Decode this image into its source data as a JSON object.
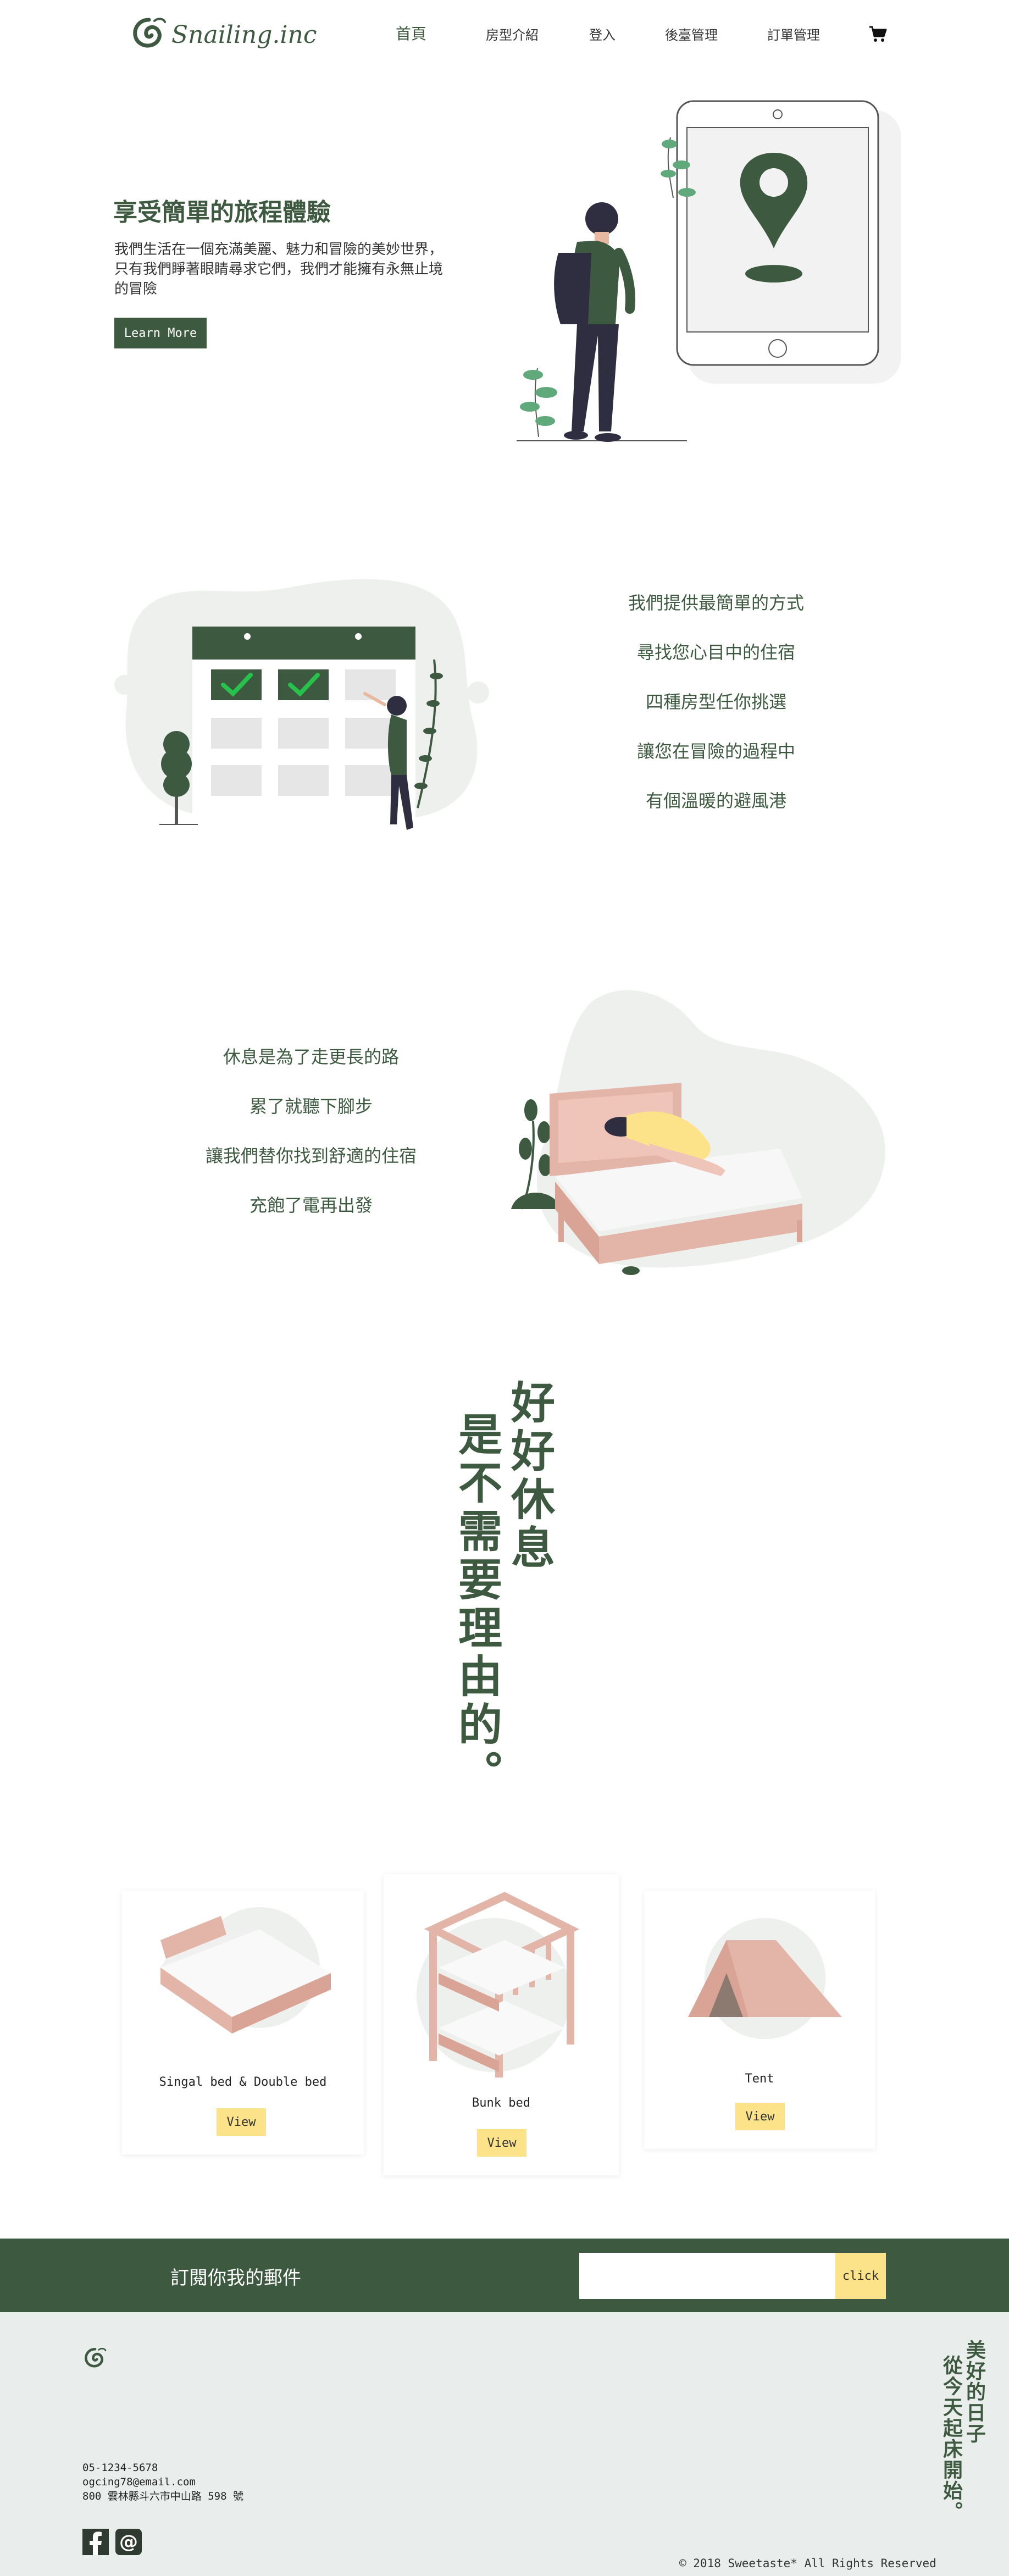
{
  "nav": {
    "logo": "Snailing.inc",
    "items": [
      {
        "label": "首頁",
        "active": true
      },
      {
        "label": "房型介紹",
        "active": false
      },
      {
        "label": "登入",
        "active": false
      },
      {
        "label": "後臺管理",
        "active": false
      },
      {
        "label": "訂單管理",
        "active": false
      }
    ],
    "cart_icon": "cart-icon"
  },
  "hero": {
    "title": "享受簡單的旅程體驗",
    "lines": [
      "我們生活在一個充滿美麗、魅力和冒險的美妙世界，",
      "只有我們睜著眼睛尋求它們，我們才能擁有永無止境",
      "的冒險"
    ],
    "button": "Learn More"
  },
  "features1": [
    "我們提供最簡單的方式",
    "尋找您心目中的住宿",
    "四種房型任你挑選",
    "讓您在冒險的過程中",
    "有個溫暖的避風港"
  ],
  "features2": [
    "休息是為了走更長的路",
    "累了就聽下腳步",
    "讓我們替你找到舒適的住宿",
    "充飽了電再出發"
  ],
  "quote": {
    "col1": "好好休息",
    "col2": "是不需要理由的。"
  },
  "cards": [
    {
      "label": "Singal bed & Double bed",
      "button": "View"
    },
    {
      "label": "Bunk bed",
      "button": "View"
    },
    {
      "label": "Tent",
      "button": "View"
    }
  ],
  "subscribe": {
    "title": "訂閱你我的郵件",
    "placeholder": "",
    "button": "click"
  },
  "footer": {
    "phone": "05-1234-5678",
    "email": "ogcing78@email.com",
    "address": "800 雲林縣斗六市中山路 598 號",
    "vertical_col1": "美好的日子",
    "vertical_col2": "從今天起床開始。",
    "copyright": "© 2018 Sweetaste* All Rights Reserved",
    "icons": [
      "facebook-icon",
      "at-icon"
    ]
  },
  "colors": {
    "primary": "#3d5a40",
    "accent": "#fce38a",
    "footer_bg": "#e9eeec"
  }
}
